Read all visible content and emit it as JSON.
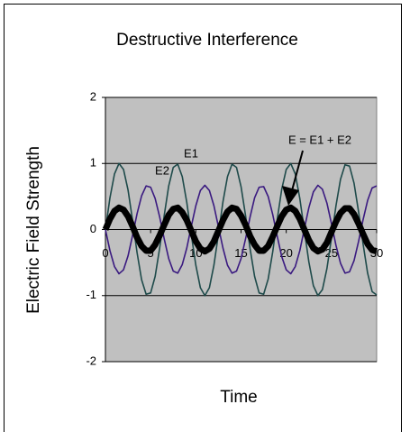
{
  "chart_data": {
    "type": "line",
    "title": "Destructive Interference",
    "xlabel": "Time",
    "ylabel": "Electric Field Strength",
    "annotations": [
      "E1",
      "E2",
      "E = E1 + E2"
    ],
    "x": [
      0,
      0.5,
      1,
      1.5,
      2,
      2.5,
      3,
      3.5,
      4,
      4.5,
      5,
      5.5,
      6,
      6.5,
      7,
      7.5,
      8,
      8.5,
      9,
      9.5,
      10,
      10.5,
      11,
      11.5,
      12,
      12.5,
      13,
      13.5,
      14,
      14.5,
      15,
      15.5,
      16,
      16.5,
      17,
      17.5,
      18,
      18.5,
      19,
      19.5,
      20,
      20.5,
      21,
      21.5,
      22,
      22.5,
      23,
      23.5,
      24,
      24.5,
      25,
      25.5,
      26,
      26.5,
      27,
      27.5,
      28,
      28.5,
      29,
      29.5,
      30
    ],
    "series": [
      {
        "name": "E1",
        "color": "#1e4a4a",
        "width": 1.6,
        "values": [
          0,
          0.48,
          0.84,
          1.0,
          0.91,
          0.6,
          0.14,
          -0.35,
          -0.76,
          -0.98,
          -0.96,
          -0.71,
          -0.28,
          0.21,
          0.66,
          0.94,
          0.99,
          0.8,
          0.41,
          -0.08,
          -0.54,
          -0.88,
          -1.0,
          -0.88,
          -0.54,
          -0.07,
          0.42,
          0.8,
          0.99,
          0.94,
          0.65,
          0.21,
          -0.29,
          -0.71,
          -0.96,
          -0.98,
          -0.75,
          -0.34,
          0.15,
          0.61,
          0.91,
          1.0,
          0.84,
          0.47,
          -0.01,
          -0.49,
          -0.85,
          -1.0,
          -0.91,
          -0.59,
          -0.13,
          0.36,
          0.76,
          0.98,
          0.96,
          0.7,
          0.27,
          -0.22,
          -0.66,
          -0.94,
          -0.99
        ]
      },
      {
        "name": "E2",
        "color": "#3a1a80",
        "width": 1.6,
        "values": [
          0,
          -0.32,
          -0.56,
          -0.67,
          -0.61,
          -0.4,
          -0.09,
          0.24,
          0.51,
          0.66,
          0.64,
          0.47,
          0.19,
          -0.14,
          -0.44,
          -0.63,
          -0.66,
          -0.53,
          -0.28,
          0.05,
          0.36,
          0.59,
          0.67,
          0.59,
          0.36,
          0.04,
          -0.28,
          -0.54,
          -0.66,
          -0.63,
          -0.44,
          -0.14,
          0.19,
          0.48,
          0.64,
          0.65,
          0.5,
          0.23,
          -0.1,
          -0.41,
          -0.61,
          -0.67,
          -0.56,
          -0.32,
          0.01,
          0.33,
          0.57,
          0.67,
          0.61,
          0.4,
          0.09,
          -0.24,
          -0.51,
          -0.66,
          -0.64,
          -0.47,
          -0.18,
          0.15,
          0.44,
          0.63,
          0.66
        ]
      },
      {
        "name": "E = E1 + E2",
        "color": "#000000",
        "width": 7,
        "values": [
          0,
          0.16,
          0.28,
          0.33,
          0.3,
          0.2,
          0.05,
          -0.12,
          -0.25,
          -0.32,
          -0.32,
          -0.23,
          -0.09,
          0.07,
          0.22,
          0.31,
          0.33,
          0.26,
          0.14,
          -0.02,
          -0.18,
          -0.29,
          -0.33,
          -0.29,
          -0.18,
          -0.02,
          0.14,
          0.27,
          0.33,
          0.31,
          0.21,
          0.07,
          -0.1,
          -0.23,
          -0.32,
          -0.32,
          -0.25,
          -0.11,
          0.05,
          0.2,
          0.3,
          0.33,
          0.28,
          0.16,
          0,
          -0.16,
          -0.28,
          -0.33,
          -0.3,
          -0.2,
          -0.04,
          0.12,
          0.25,
          0.32,
          0.32,
          0.23,
          0.09,
          -0.07,
          -0.22,
          -0.31,
          -0.33
        ]
      }
    ],
    "xlim": [
      0,
      30
    ],
    "xticks": [
      0,
      5,
      10,
      15,
      20,
      25,
      30
    ],
    "ylim": [
      -2,
      2
    ],
    "yticks": [
      -2,
      -1,
      0,
      1,
      2
    ],
    "grid": true,
    "plot_background": "#c0c0c0"
  }
}
